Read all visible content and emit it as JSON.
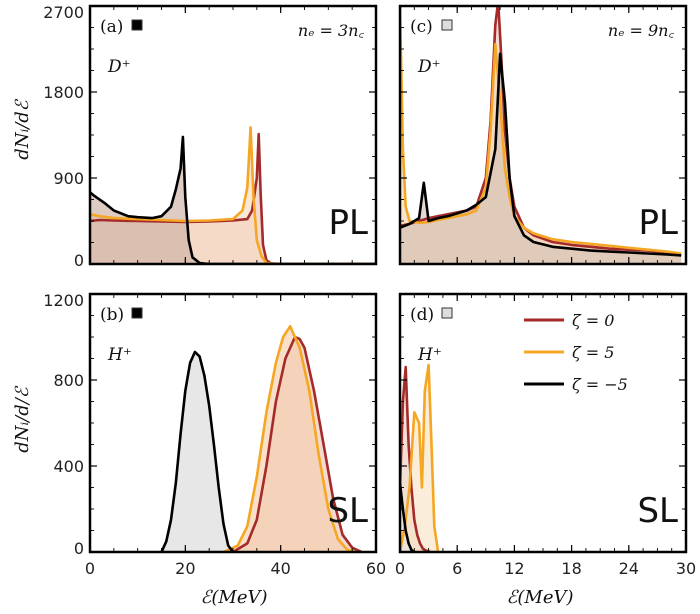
{
  "chart_data": [
    {
      "id": "a",
      "type": "area",
      "panel_label": "(a)",
      "marker_fill": "#000000",
      "species": "D⁺",
      "density": "nₑ = 3n꜀",
      "regime": "PL",
      "xlim": [
        0,
        60
      ],
      "ylim": [
        0,
        2700
      ],
      "xticks": [
        0,
        20,
        40,
        60
      ],
      "yticks": [
        0,
        900,
        1800,
        2700
      ],
      "show_x_tick_labels": false,
      "show_y_tick_labels": true,
      "series": [
        {
          "name": "ζ = 0",
          "color": "#a52a2a",
          "fill": "#e9c8bd",
          "x": [
            0,
            2,
            5,
            10,
            15,
            20,
            25,
            30,
            33,
            34,
            35,
            35.4,
            35.8,
            36.3,
            37,
            38,
            40,
            45,
            60
          ],
          "y": [
            450,
            460,
            455,
            450,
            445,
            440,
            445,
            455,
            470,
            560,
            900,
            1360,
            750,
            200,
            40,
            5,
            0,
            0,
            0
          ]
        },
        {
          "name": "ζ = 5",
          "color": "#f5a623",
          "fill": "#f7dcc0",
          "x": [
            0,
            2,
            5,
            10,
            15,
            20,
            25,
            30,
            32,
            33,
            33.7,
            34.3,
            35,
            36,
            37,
            40,
            45,
            60
          ],
          "y": [
            520,
            500,
            480,
            470,
            460,
            450,
            455,
            470,
            560,
            800,
            1430,
            700,
            250,
            80,
            10,
            0,
            0,
            0
          ]
        },
        {
          "name": "ζ = −5",
          "color": "#000000",
          "fill": "#cdb1a4",
          "x": [
            0,
            1,
            3,
            5,
            8,
            10,
            13,
            15,
            17,
            18,
            19,
            19.5,
            20,
            20.7,
            21.5,
            23,
            25,
            30,
            60
          ],
          "y": [
            750,
            710,
            640,
            560,
            500,
            490,
            480,
            500,
            600,
            780,
            1000,
            1330,
            700,
            250,
            70,
            10,
            0,
            0,
            0
          ]
        }
      ]
    },
    {
      "id": "b",
      "type": "area",
      "panel_label": "(b)",
      "marker_fill": "#000000",
      "species": "H⁺",
      "regime": "SL",
      "xlabel": "ℰ(MeV)",
      "ylabel": "dNᵢ/d/ℰ",
      "xlim": [
        0,
        60
      ],
      "ylim": [
        0,
        1200
      ],
      "xticks": [
        0,
        20,
        40,
        60
      ],
      "yticks": [
        0,
        400,
        800,
        1200
      ],
      "show_x_tick_labels": true,
      "show_y_tick_labels": true,
      "series": [
        {
          "name": "ζ = 0",
          "color": "#a52a2a",
          "fill": "#ecc8b8",
          "x": [
            30,
            33,
            35,
            37,
            39,
            41,
            43,
            44,
            45,
            47,
            49,
            51,
            53,
            55,
            57
          ],
          "y": [
            0,
            40,
            150,
            400,
            700,
            900,
            1000,
            990,
            950,
            750,
            500,
            250,
            80,
            20,
            0
          ]
        },
        {
          "name": "ζ = 5",
          "color": "#f5a623",
          "fill": "#f6cfae",
          "x": [
            28,
            31,
            33,
            35,
            37,
            39,
            40.5,
            42,
            44,
            46,
            48,
            50,
            52,
            54,
            56
          ],
          "y": [
            0,
            30,
            120,
            350,
            650,
            880,
            1000,
            1050,
            950,
            750,
            450,
            200,
            60,
            10,
            0
          ]
        },
        {
          "name": "ζ = −5",
          "color": "#000000",
          "fill": "#dadada",
          "x": [
            15,
            16,
            17,
            18,
            19,
            20,
            21,
            22,
            23,
            24,
            25,
            26,
            27,
            28,
            29,
            30
          ],
          "y": [
            0,
            50,
            150,
            320,
            550,
            750,
            880,
            930,
            910,
            820,
            680,
            500,
            300,
            130,
            30,
            0
          ]
        }
      ]
    },
    {
      "id": "c",
      "type": "area",
      "panel_label": "(c)",
      "marker_fill": "#dddddd",
      "species": "D⁺",
      "density": "nₑ = 9n꜀",
      "regime": "PL",
      "xlim": [
        0,
        30
      ],
      "ylim": [
        0,
        2700
      ],
      "xticks": [
        0,
        6,
        12,
        18,
        24,
        30
      ],
      "yticks": [
        0,
        900,
        1800,
        2700
      ],
      "show_x_tick_labels": false,
      "show_y_tick_labels": false,
      "series": [
        {
          "name": "ζ = 0",
          "color": "#a52a2a",
          "fill": "#e9c8bd",
          "x": [
            0,
            1,
            2,
            3,
            4,
            5,
            6,
            7,
            8,
            9,
            9.5,
            10,
            10.3,
            10.6,
            11,
            11.5,
            12,
            13,
            14,
            16,
            18,
            20,
            22,
            24,
            26,
            28,
            29.5
          ],
          "y": [
            400,
            420,
            450,
            480,
            500,
            520,
            540,
            560,
            600,
            900,
            1500,
            2500,
            2750,
            2200,
            1400,
            900,
            600,
            380,
            300,
            230,
            200,
            180,
            160,
            150,
            140,
            120,
            100
          ]
        },
        {
          "name": "ζ = 5",
          "color": "#f5a623",
          "fill": "#f6d5b6",
          "x": [
            0,
            0.3,
            0.6,
            1,
            2,
            3,
            4,
            5,
            6,
            7,
            8,
            9,
            9.5,
            10,
            10.5,
            11,
            11.5,
            12,
            13,
            14,
            16,
            18,
            20,
            22,
            24,
            26,
            28,
            29.5
          ],
          "y": [
            2700,
            1200,
            600,
            450,
            430,
            440,
            460,
            480,
            500,
            520,
            560,
            800,
            1400,
            2300,
            1700,
            1000,
            700,
            500,
            380,
            320,
            260,
            230,
            210,
            190,
            170,
            150,
            130,
            110
          ]
        },
        {
          "name": "ζ = −5",
          "color": "#000000",
          "fill": "#d6c3b7",
          "x": [
            0,
            1,
            2,
            2.5,
            3,
            4,
            5,
            6,
            7,
            8,
            9,
            10,
            10.5,
            11,
            11.5,
            12,
            13,
            14,
            16,
            18,
            20,
            22,
            24,
            26,
            28,
            29.5
          ],
          "y": [
            380,
            420,
            480,
            850,
            450,
            480,
            500,
            530,
            560,
            620,
            700,
            1200,
            2200,
            1700,
            900,
            500,
            300,
            230,
            180,
            160,
            140,
            130,
            120,
            110,
            100,
            90
          ]
        }
      ]
    },
    {
      "id": "d",
      "type": "area",
      "panel_label": "(d)",
      "marker_fill": "#dddddd",
      "species": "H⁺",
      "regime": "SL",
      "xlabel": "ℰ(MeV)",
      "xlim": [
        0,
        30
      ],
      "ylim": [
        0,
        1200
      ],
      "xticks": [
        0,
        6,
        12,
        18,
        24,
        30
      ],
      "yticks": [
        0,
        400,
        800,
        1200
      ],
      "show_x_tick_labels": true,
      "show_y_tick_labels": false,
      "series": [
        {
          "name": "ζ = 0",
          "color": "#a52a2a",
          "fill": "#eccfbf",
          "x": [
            0,
            0.3,
            0.6,
            0.9,
            1.2,
            1.5,
            1.8,
            2.1,
            2.4,
            2.8,
            3.2
          ],
          "y": [
            300,
            700,
            860,
            500,
            300,
            150,
            80,
            40,
            15,
            5,
            0
          ]
        },
        {
          "name": "ζ = 5",
          "color": "#f5a623",
          "fill": "#f8e3c4",
          "x": [
            0,
            0.5,
            1,
            1.5,
            2,
            2.3,
            2.6,
            3,
            3.3,
            3.6,
            4
          ],
          "y": [
            0,
            120,
            300,
            650,
            600,
            300,
            750,
            870,
            500,
            120,
            0
          ]
        },
        {
          "name": "ζ = −5",
          "color": "#000000",
          "fill": "#e5e5e5",
          "x": [
            0,
            0.3,
            0.6,
            0.9,
            1.2,
            1.5
          ],
          "y": [
            320,
            200,
            100,
            40,
            10,
            0
          ]
        }
      ]
    }
  ],
  "legend": {
    "placement": "top-right of panel (d)",
    "items": [
      {
        "label": "ζ = 0",
        "color": "#a52a2a"
      },
      {
        "label": "ζ = 5",
        "color": "#f5a623"
      },
      {
        "label": "ζ = −5",
        "color": "#000000"
      }
    ]
  },
  "shared": {
    "ylabel_top": "dNᵢ/dℰ"
  }
}
